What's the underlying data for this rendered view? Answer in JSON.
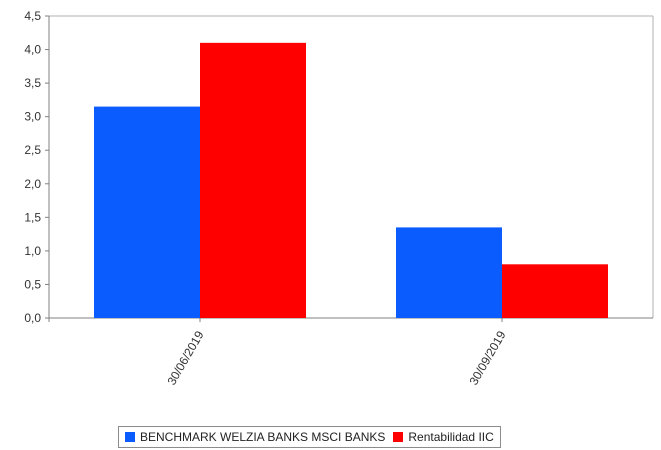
{
  "chart_data": {
    "type": "bar",
    "categories": [
      "30/06/2019",
      "30/09/2019"
    ],
    "series": [
      {
        "name": "BENCHMARK WELZIA BANKS MSCI BANKS",
        "values": [
          3.15,
          1.35
        ],
        "color": "#0a5cff"
      },
      {
        "name": "Rentabilidad IIC",
        "values": [
          4.1,
          0.8
        ],
        "color": "#ff0000"
      }
    ],
    "ylim": [
      0,
      4.5
    ],
    "yticks": [
      "0,0",
      "0,5",
      "1,0",
      "1,5",
      "2,0",
      "2,5",
      "3,0",
      "3,5",
      "4,0",
      "4,5"
    ],
    "grid": false,
    "legend_position": "bottom",
    "title": "",
    "xlabel": "",
    "ylabel": ""
  }
}
